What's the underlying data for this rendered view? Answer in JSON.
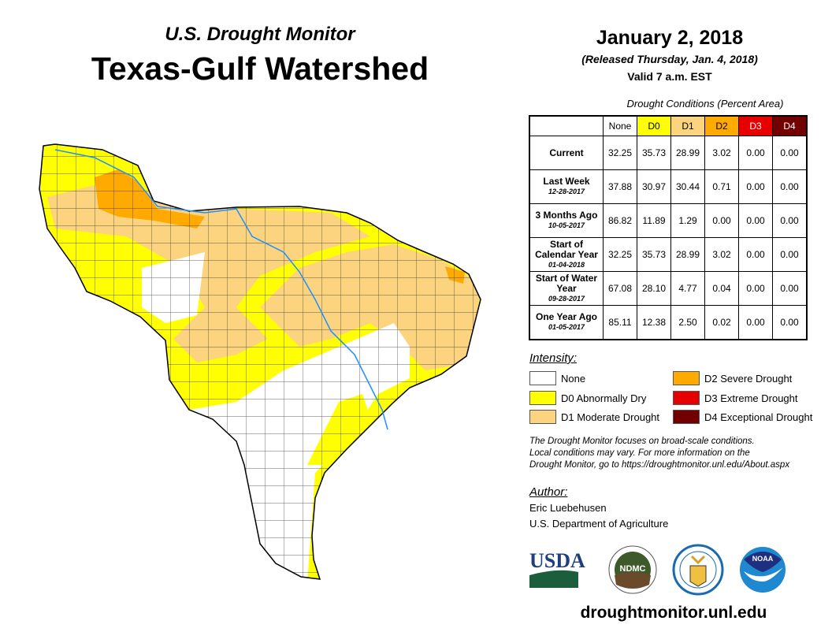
{
  "header": {
    "subtitle": "U.S. Drought Monitor",
    "title": "Texas-Gulf Watershed",
    "date": "January 2, 2018",
    "released": "(Released Thursday, Jan. 4, 2018)",
    "valid": "Valid 7 a.m. EST"
  },
  "table": {
    "caption": "Drought Conditions (Percent Area)",
    "columns": [
      "None",
      "D0",
      "D1",
      "D2",
      "D3",
      "D4"
    ],
    "column_colors": [
      "#ffffff",
      "#ffff00",
      "#fcd37f",
      "#ffaa00",
      "#e60000",
      "#730000"
    ],
    "rows": [
      {
        "label": "Current",
        "date": "",
        "values": [
          "32.25",
          "35.73",
          "28.99",
          "3.02",
          "0.00",
          "0.00"
        ]
      },
      {
        "label": "Last Week",
        "date": "12-28-2017",
        "values": [
          "37.88",
          "30.97",
          "30.44",
          "0.71",
          "0.00",
          "0.00"
        ]
      },
      {
        "label": "3 Months Ago",
        "date": "10-05-2017",
        "values": [
          "86.82",
          "11.89",
          "1.29",
          "0.00",
          "0.00",
          "0.00"
        ]
      },
      {
        "label": "Start of Calendar Year",
        "date": "01-04-2018",
        "values": [
          "32.25",
          "35.73",
          "28.99",
          "3.02",
          "0.00",
          "0.00"
        ]
      },
      {
        "label": "Start of Water Year",
        "date": "09-28-2017",
        "values": [
          "67.08",
          "28.10",
          "4.77",
          "0.04",
          "0.00",
          "0.00"
        ]
      },
      {
        "label": "One Year Ago",
        "date": "01-05-2017",
        "values": [
          "85.11",
          "12.38",
          "2.50",
          "0.02",
          "0.00",
          "0.00"
        ]
      }
    ]
  },
  "legend": {
    "title": "Intensity:",
    "items": [
      {
        "label": "None",
        "color": "#ffffff"
      },
      {
        "label": "D0 Abnormally Dry",
        "color": "#ffff00"
      },
      {
        "label": "D1 Moderate Drought",
        "color": "#fcd37f"
      },
      {
        "label": "D2 Severe Drought",
        "color": "#ffaa00"
      },
      {
        "label": "D3 Extreme Drought",
        "color": "#e60000"
      },
      {
        "label": "D4 Exceptional Drought",
        "color": "#730000"
      }
    ]
  },
  "note": [
    "The Drought Monitor focuses on broad-scale conditions.",
    "Local conditions may vary. For more information on the",
    "Drought Monitor, go to https://droughtmonitor.unl.edu/About.aspx"
  ],
  "author": {
    "heading": "Author:",
    "name": "Eric Luebehusen",
    "org": "U.S. Department of Agriculture"
  },
  "logos": [
    "USDA",
    "NDMC",
    "Department of Commerce",
    "NOAA"
  ],
  "footer_url": "droughtmonitor.unl.edu"
}
